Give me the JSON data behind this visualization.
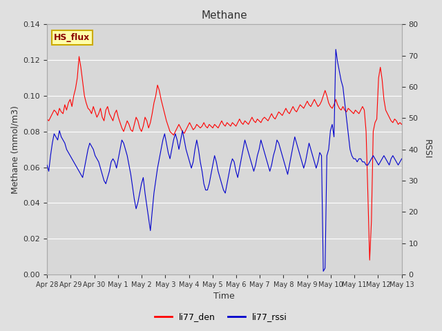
{
  "title": "Methane",
  "xlabel": "Time",
  "ylabel_left": "Methane (mmol/m3)",
  "ylabel_right": "RSSI",
  "ylim_left": [
    0.0,
    0.14
  ],
  "ylim_right": [
    0,
    80
  ],
  "yticks_left": [
    0.0,
    0.02,
    0.04,
    0.06,
    0.08,
    0.1,
    0.12,
    0.14
  ],
  "yticks_right": [
    0,
    10,
    20,
    30,
    40,
    50,
    60,
    70,
    80
  ],
  "fig_bg_color": "#e0e0e0",
  "plot_bg_color": "#d8d8d8",
  "legend_entries": [
    "li77_den",
    "li77_rssi"
  ],
  "line_color_red": "#ff0000",
  "line_color_blue": "#0000cc",
  "hs_flux_label": "HS_flux",
  "x_tick_labels": [
    "Apr 28",
    "Apr 29",
    "Apr 30",
    "May 1",
    "May 2",
    "May 3",
    "May 4",
    "May 5",
    "May 6",
    "May 7",
    "May 8",
    "May 9",
    "May 10",
    "May 11",
    "May 12",
    "May 13"
  ],
  "red_data": [
    0.087,
    0.086,
    0.088,
    0.09,
    0.092,
    0.091,
    0.089,
    0.093,
    0.091,
    0.09,
    0.095,
    0.092,
    0.096,
    0.098,
    0.094,
    0.1,
    0.104,
    0.11,
    0.122,
    0.116,
    0.108,
    0.1,
    0.096,
    0.093,
    0.092,
    0.09,
    0.094,
    0.091,
    0.088,
    0.09,
    0.093,
    0.088,
    0.086,
    0.092,
    0.094,
    0.09,
    0.088,
    0.086,
    0.09,
    0.092,
    0.088,
    0.085,
    0.082,
    0.08,
    0.083,
    0.086,
    0.084,
    0.081,
    0.08,
    0.084,
    0.088,
    0.086,
    0.082,
    0.08,
    0.083,
    0.088,
    0.086,
    0.082,
    0.085,
    0.09,
    0.096,
    0.1,
    0.106,
    0.103,
    0.098,
    0.094,
    0.09,
    0.086,
    0.083,
    0.08,
    0.079,
    0.078,
    0.08,
    0.082,
    0.084,
    0.082,
    0.08,
    0.079,
    0.081,
    0.083,
    0.085,
    0.083,
    0.081,
    0.082,
    0.084,
    0.083,
    0.082,
    0.083,
    0.085,
    0.083,
    0.082,
    0.084,
    0.083,
    0.082,
    0.084,
    0.083,
    0.082,
    0.084,
    0.086,
    0.084,
    0.083,
    0.085,
    0.084,
    0.083,
    0.085,
    0.084,
    0.083,
    0.085,
    0.087,
    0.085,
    0.084,
    0.086,
    0.085,
    0.084,
    0.086,
    0.088,
    0.086,
    0.085,
    0.087,
    0.086,
    0.085,
    0.087,
    0.088,
    0.087,
    0.086,
    0.088,
    0.09,
    0.088,
    0.087,
    0.089,
    0.091,
    0.09,
    0.089,
    0.091,
    0.093,
    0.091,
    0.09,
    0.092,
    0.094,
    0.092,
    0.091,
    0.093,
    0.095,
    0.094,
    0.093,
    0.095,
    0.097,
    0.095,
    0.094,
    0.096,
    0.098,
    0.096,
    0.094,
    0.095,
    0.097,
    0.1,
    0.103,
    0.1,
    0.096,
    0.094,
    0.093,
    0.095,
    0.098,
    0.095,
    0.093,
    0.092,
    0.094,
    0.092,
    0.091,
    0.093,
    0.092,
    0.091,
    0.09,
    0.092,
    0.091,
    0.09,
    0.092,
    0.094,
    0.092,
    0.08,
    0.045,
    0.008,
    0.03,
    0.08,
    0.085,
    0.087,
    0.11,
    0.116,
    0.109,
    0.098,
    0.092,
    0.09,
    0.088,
    0.086,
    0.085,
    0.087,
    0.086,
    0.084,
    0.085,
    0.084
  ],
  "blue_data_rssi": [
    35,
    33,
    38,
    42,
    45,
    44,
    43,
    46,
    44,
    43,
    42,
    40,
    39,
    38,
    37,
    36,
    35,
    34,
    33,
    32,
    31,
    34,
    37,
    40,
    42,
    41,
    40,
    38,
    37,
    36,
    34,
    32,
    30,
    29,
    31,
    33,
    36,
    37,
    36,
    34,
    37,
    40,
    43,
    42,
    40,
    38,
    35,
    32,
    28,
    24,
    21,
    23,
    26,
    29,
    31,
    26,
    22,
    18,
    14,
    20,
    26,
    30,
    34,
    37,
    40,
    43,
    45,
    42,
    39,
    37,
    40,
    43,
    45,
    43,
    40,
    43,
    46,
    43,
    40,
    38,
    36,
    34,
    36,
    40,
    43,
    40,
    36,
    33,
    29,
    27,
    27,
    29,
    32,
    35,
    38,
    36,
    33,
    31,
    29,
    27,
    26,
    29,
    32,
    35,
    37,
    36,
    33,
    31,
    34,
    37,
    40,
    43,
    41,
    39,
    37,
    35,
    33,
    35,
    38,
    40,
    43,
    41,
    39,
    37,
    35,
    33,
    35,
    38,
    40,
    43,
    42,
    40,
    38,
    36,
    34,
    32,
    35,
    38,
    41,
    44,
    42,
    40,
    38,
    36,
    34,
    36,
    39,
    42,
    40,
    38,
    36,
    34,
    36,
    39,
    38,
    1,
    2,
    38,
    40,
    46,
    48,
    44,
    72,
    68,
    65,
    62,
    60,
    55,
    50,
    45,
    40,
    38,
    37,
    37,
    36,
    37,
    37,
    36,
    36,
    35,
    35,
    36,
    37,
    38,
    37,
    36,
    35,
    36,
    37,
    38,
    37,
    36,
    35,
    37,
    38,
    37,
    36,
    35,
    36,
    37
  ]
}
